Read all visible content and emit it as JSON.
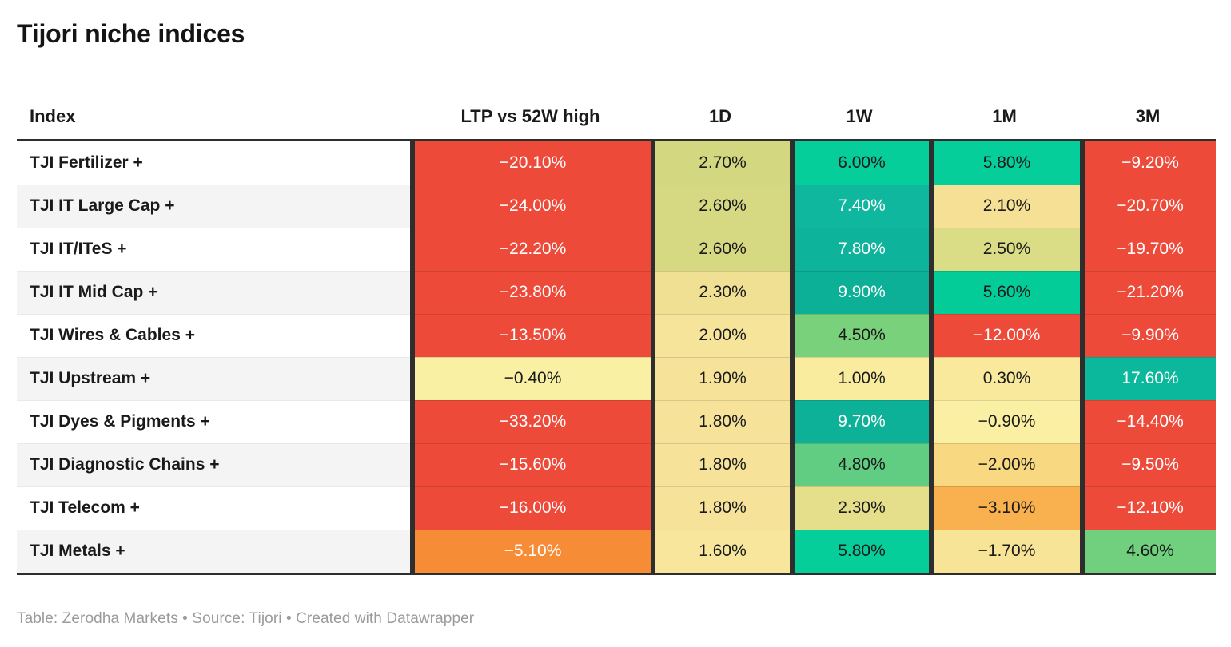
{
  "title": "Tijori niche indices",
  "columns": [
    "Index",
    "LTP vs 52W high",
    "1D",
    "1W",
    "1M",
    "3M"
  ],
  "footer": "Table: Zerodha Markets • Source: Tijori • Created with Datawrapper",
  "palette": {
    "strong_negative_red": "#EE4A3A",
    "negative_orange": "#F68C36",
    "mild_negative_orange": "#F9B04E",
    "neutral_yellow": "#F6E399",
    "yellow_green": "#D6D982",
    "positive_light_green": "#77D17B",
    "positive_emerald": "#05CE9B",
    "positive_deep_teal": "#0DB39A",
    "header_rule": "#2e2e2e",
    "alt_row_bg": "#f4f4f4"
  },
  "table": {
    "rows": [
      {
        "index": "TJI Fertilizer +",
        "cells": [
          {
            "text": "−20.10%",
            "bg": "#EE4A3A",
            "fg": "#FFFFFF"
          },
          {
            "text": "2.70%",
            "bg": "#D3D880",
            "fg": "#1A1A1A"
          },
          {
            "text": "6.00%",
            "bg": "#05CE9B",
            "fg": "#1A1A1A"
          },
          {
            "text": "5.80%",
            "bg": "#05CE9B",
            "fg": "#1A1A1A"
          },
          {
            "text": "−9.20%",
            "bg": "#EE4A3A",
            "fg": "#FFFFFF"
          }
        ]
      },
      {
        "index": "TJI IT Large Cap +",
        "cells": [
          {
            "text": "−24.00%",
            "bg": "#EE4A3A",
            "fg": "#FFFFFF"
          },
          {
            "text": "2.60%",
            "bg": "#D6D982",
            "fg": "#1A1A1A"
          },
          {
            "text": "7.40%",
            "bg": "#0FB79E",
            "fg": "#FFFFFF"
          },
          {
            "text": "2.10%",
            "bg": "#F5E095",
            "fg": "#1A1A1A"
          },
          {
            "text": "−20.70%",
            "bg": "#EE4A3A",
            "fg": "#FFFFFF"
          }
        ]
      },
      {
        "index": "TJI IT/ITeS +",
        "cells": [
          {
            "text": "−22.20%",
            "bg": "#EE4A3A",
            "fg": "#FFFFFF"
          },
          {
            "text": "2.60%",
            "bg": "#D6D982",
            "fg": "#1A1A1A"
          },
          {
            "text": "7.80%",
            "bg": "#0DB39A",
            "fg": "#FFFFFF"
          },
          {
            "text": "2.50%",
            "bg": "#DBDC86",
            "fg": "#1A1A1A"
          },
          {
            "text": "−19.70%",
            "bg": "#EE4A3A",
            "fg": "#FFFFFF"
          }
        ]
      },
      {
        "index": "TJI IT Mid Cap +",
        "cells": [
          {
            "text": "−23.80%",
            "bg": "#EE4A3A",
            "fg": "#FFFFFF"
          },
          {
            "text": "2.30%",
            "bg": "#EFE093",
            "fg": "#1A1A1A"
          },
          {
            "text": "9.90%",
            "bg": "#0BB096",
            "fg": "#FFFFFF"
          },
          {
            "text": "5.60%",
            "bg": "#04CC99",
            "fg": "#1A1A1A"
          },
          {
            "text": "−21.20%",
            "bg": "#EE4A3A",
            "fg": "#FFFFFF"
          }
        ]
      },
      {
        "index": "TJI Wires & Cables +",
        "cells": [
          {
            "text": "−13.50%",
            "bg": "#EE4A3A",
            "fg": "#FFFFFF"
          },
          {
            "text": "2.00%",
            "bg": "#F5E499",
            "fg": "#1A1A1A"
          },
          {
            "text": "4.50%",
            "bg": "#7AD17B",
            "fg": "#1A1A1A"
          },
          {
            "text": "−12.00%",
            "bg": "#EE4A3A",
            "fg": "#FFFFFF"
          },
          {
            "text": "−9.90%",
            "bg": "#EE4A3A",
            "fg": "#FFFFFF"
          }
        ]
      },
      {
        "index": "TJI Upstream +",
        "cells": [
          {
            "text": "−0.40%",
            "bg": "#FAF0A3",
            "fg": "#1A1A1A"
          },
          {
            "text": "1.90%",
            "bg": "#F6E299",
            "fg": "#1A1A1A"
          },
          {
            "text": "1.00%",
            "bg": "#F9EC9F",
            "fg": "#1A1A1A"
          },
          {
            "text": "0.30%",
            "bg": "#F9E99C",
            "fg": "#1A1A1A"
          },
          {
            "text": "17.60%",
            "bg": "#0CB89B",
            "fg": "#FFFFFF"
          }
        ]
      },
      {
        "index": "TJI Dyes & Pigments +",
        "cells": [
          {
            "text": "−33.20%",
            "bg": "#EE4A3A",
            "fg": "#FFFFFF"
          },
          {
            "text": "1.80%",
            "bg": "#F6E399",
            "fg": "#1A1A1A"
          },
          {
            "text": "9.70%",
            "bg": "#0CB197",
            "fg": "#FFFFFF"
          },
          {
            "text": "−0.90%",
            "bg": "#FAEFA2",
            "fg": "#1A1A1A"
          },
          {
            "text": "−14.40%",
            "bg": "#EE4A3A",
            "fg": "#FFFFFF"
          }
        ]
      },
      {
        "index": "TJI Diagnostic Chains +",
        "cells": [
          {
            "text": "−15.60%",
            "bg": "#EE4A3A",
            "fg": "#FFFFFF"
          },
          {
            "text": "1.80%",
            "bg": "#F6E399",
            "fg": "#1A1A1A"
          },
          {
            "text": "4.80%",
            "bg": "#60CD82",
            "fg": "#1A1A1A"
          },
          {
            "text": "−2.00%",
            "bg": "#F8D981",
            "fg": "#1A1A1A"
          },
          {
            "text": "−9.50%",
            "bg": "#EE4A3A",
            "fg": "#FFFFFF"
          }
        ]
      },
      {
        "index": "TJI Telecom +",
        "cells": [
          {
            "text": "−16.00%",
            "bg": "#EE4A3A",
            "fg": "#FFFFFF"
          },
          {
            "text": "1.80%",
            "bg": "#F6E399",
            "fg": "#1A1A1A"
          },
          {
            "text": "2.30%",
            "bg": "#E5DE8B",
            "fg": "#1A1A1A"
          },
          {
            "text": "−3.10%",
            "bg": "#F9B04E",
            "fg": "#1A1A1A"
          },
          {
            "text": "−12.10%",
            "bg": "#EE4A3A",
            "fg": "#FFFFFF"
          }
        ]
      },
      {
        "index": "TJI Metals +",
        "cells": [
          {
            "text": "−5.10%",
            "bg": "#F68C36",
            "fg": "#FFFFFF"
          },
          {
            "text": "1.60%",
            "bg": "#F7E69C",
            "fg": "#1A1A1A"
          },
          {
            "text": "5.80%",
            "bg": "#05CE9B",
            "fg": "#1A1A1A"
          },
          {
            "text": "−1.70%",
            "bg": "#F8E496",
            "fg": "#1A1A1A"
          },
          {
            "text": "4.60%",
            "bg": "#70D07E",
            "fg": "#1A1A1A"
          }
        ]
      }
    ]
  },
  "chart_data": {
    "type": "table",
    "title": "Tijori niche indices",
    "columns": [
      "Index",
      "LTP vs 52W high",
      "1D",
      "1W",
      "1M",
      "3M"
    ],
    "units": "percent",
    "color_encoding": "red = negative, yellow = neutral, green/teal = positive",
    "rows": [
      [
        "TJI Fertilizer +",
        -20.1,
        2.7,
        6.0,
        5.8,
        -9.2
      ],
      [
        "TJI IT Large Cap +",
        -24.0,
        2.6,
        7.4,
        2.1,
        -20.7
      ],
      [
        "TJI IT/ITeS +",
        -22.2,
        2.6,
        7.8,
        2.5,
        -19.7
      ],
      [
        "TJI IT Mid Cap +",
        -23.8,
        2.3,
        9.9,
        5.6,
        -21.2
      ],
      [
        "TJI Wires & Cables +",
        -13.5,
        2.0,
        4.5,
        -12.0,
        -9.9
      ],
      [
        "TJI Upstream +",
        -0.4,
        1.9,
        1.0,
        0.3,
        17.6
      ],
      [
        "TJI Dyes & Pigments +",
        -33.2,
        1.8,
        9.7,
        -0.9,
        -14.4
      ],
      [
        "TJI Diagnostic Chains +",
        -15.6,
        1.8,
        4.8,
        -2.0,
        -9.5
      ],
      [
        "TJI Telecom +",
        -16.0,
        1.8,
        2.3,
        -3.1,
        -12.1
      ],
      [
        "TJI Metals +",
        -5.1,
        1.6,
        5.8,
        -1.7,
        4.6
      ]
    ],
    "footer": "Table: Zerodha Markets • Source: Tijori • Created with Datawrapper"
  }
}
